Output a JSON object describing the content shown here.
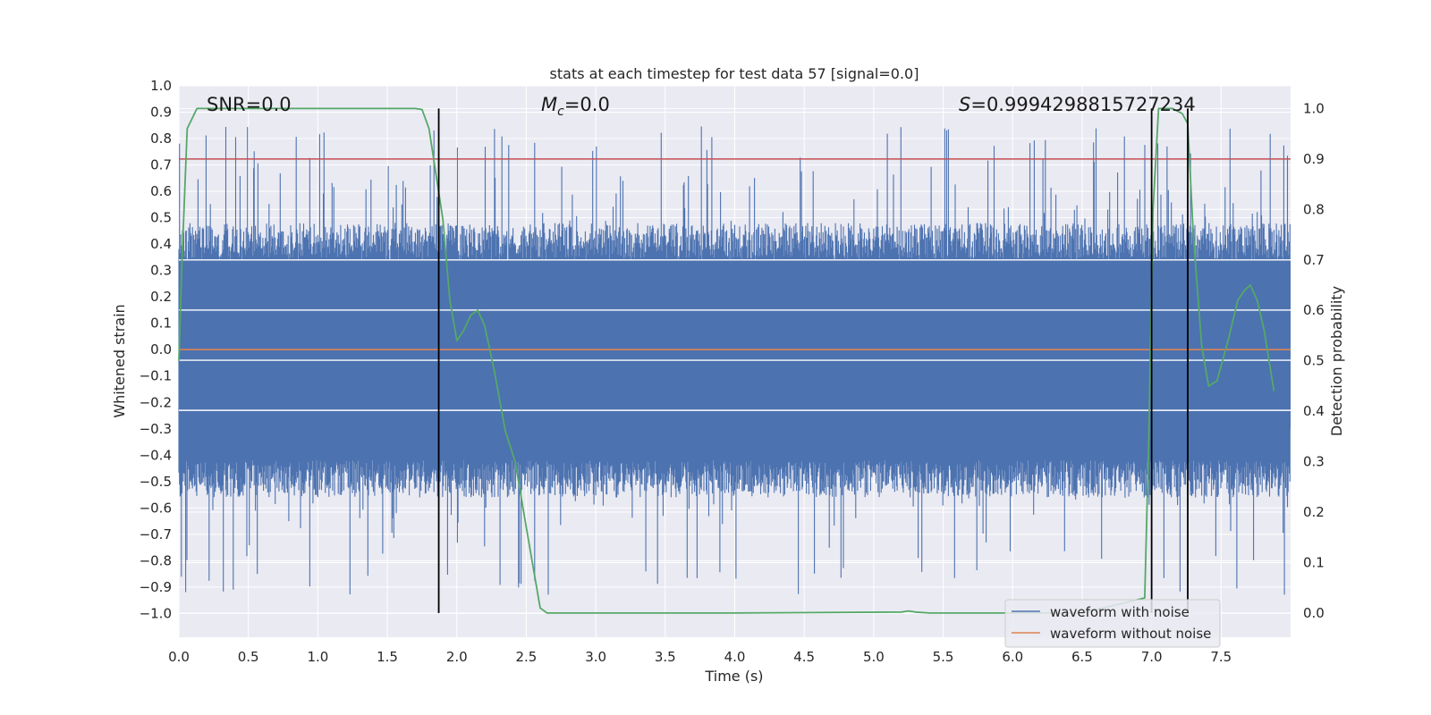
{
  "chart_data": {
    "type": "line",
    "title": "stats at each timestep for test data 57 [signal=0.0]",
    "xlabel": "Time (s)",
    "ylabel": "Whitened strain",
    "y2label": "Detection probability",
    "xlim": [
      0.0,
      8.0
    ],
    "ylim": [
      -1.09,
      1.0
    ],
    "y2lim": [
      -0.048,
      1.045
    ],
    "xticks": [
      "0.0",
      "0.5",
      "1.0",
      "1.5",
      "2.0",
      "2.5",
      "3.0",
      "3.5",
      "4.0",
      "4.5",
      "5.0",
      "5.5",
      "6.0",
      "6.5",
      "7.0",
      "7.5"
    ],
    "yticks": [
      "1.0",
      "0.9",
      "0.8",
      "0.7",
      "0.6",
      "0.5",
      "0.4",
      "0.3",
      "0.2",
      "0.1",
      "0.0",
      "−0.1",
      "−0.2",
      "−0.3",
      "−0.4",
      "−0.5",
      "−0.6",
      "−0.7",
      "−0.8",
      "−0.9",
      "−1.0"
    ],
    "y2ticks": [
      "1.0",
      "0.9",
      "0.8",
      "0.7",
      "0.6",
      "0.5",
      "0.4",
      "0.3",
      "0.2",
      "0.1",
      "0.0"
    ],
    "annotations": {
      "snr": "SNR=0.0",
      "mc_symbol": "M",
      "mc_sub": "c",
      "mc_value": "=0.0",
      "s_symbol": "S",
      "s_value": "=0.9994298815727234"
    },
    "threshold": {
      "value": 0.9,
      "axis": "right",
      "color": "#c44e52"
    },
    "vertical_lines": [
      1.87,
      7.0,
      7.26
    ],
    "horizontal_bands": [
      0.34,
      0.15,
      -0.04,
      -0.23
    ],
    "noise_envelope": {
      "core": 0.34,
      "core_low": -0.42,
      "spike_max": 0.85,
      "spike_min": -0.93
    },
    "series": [
      {
        "name": "waveform with noise",
        "color": "#4c72b0",
        "axis": "left",
        "kind": "noise"
      },
      {
        "name": "waveform without noise",
        "color": "#dd8452",
        "axis": "left",
        "values": [
          [
            0.0,
            0.0
          ],
          [
            8.0,
            0.0
          ]
        ]
      },
      {
        "name": "detection probability",
        "color": "#55a868",
        "axis": "right",
        "legend": false,
        "values": [
          [
            0.0,
            0.5
          ],
          [
            0.02,
            0.68
          ],
          [
            0.06,
            0.96
          ],
          [
            0.13,
            1.0
          ],
          [
            0.25,
            1.0
          ],
          [
            1.0,
            1.0
          ],
          [
            1.5,
            1.0
          ],
          [
            1.7,
            1.0
          ],
          [
            1.75,
            0.998
          ],
          [
            1.8,
            0.96
          ],
          [
            1.85,
            0.87
          ],
          [
            1.9,
            0.78
          ],
          [
            1.95,
            0.62
          ],
          [
            2.0,
            0.54
          ],
          [
            2.05,
            0.56
          ],
          [
            2.1,
            0.59
          ],
          [
            2.15,
            0.6
          ],
          [
            2.2,
            0.57
          ],
          [
            2.27,
            0.48
          ],
          [
            2.35,
            0.36
          ],
          [
            2.42,
            0.3
          ],
          [
            2.5,
            0.17
          ],
          [
            2.55,
            0.09
          ],
          [
            2.6,
            0.01
          ],
          [
            2.65,
            0.0
          ],
          [
            3.0,
            0.0
          ],
          [
            4.0,
            0.0
          ],
          [
            5.2,
            0.002
          ],
          [
            5.25,
            0.004
          ],
          [
            5.3,
            0.002
          ],
          [
            5.4,
            0.0
          ],
          [
            6.5,
            0.0
          ],
          [
            6.95,
            0.03
          ],
          [
            6.98,
            0.35
          ],
          [
            7.01,
            0.8
          ],
          [
            7.05,
            1.0
          ],
          [
            7.15,
            1.0
          ],
          [
            7.22,
            0.99
          ],
          [
            7.26,
            0.97
          ],
          [
            7.3,
            0.75
          ],
          [
            7.36,
            0.53
          ],
          [
            7.41,
            0.45
          ],
          [
            7.47,
            0.46
          ],
          [
            7.55,
            0.54
          ],
          [
            7.62,
            0.62
          ],
          [
            7.67,
            0.64
          ],
          [
            7.71,
            0.65
          ],
          [
            7.76,
            0.62
          ],
          [
            7.81,
            0.56
          ],
          [
            7.88,
            0.44
          ]
        ]
      }
    ]
  }
}
